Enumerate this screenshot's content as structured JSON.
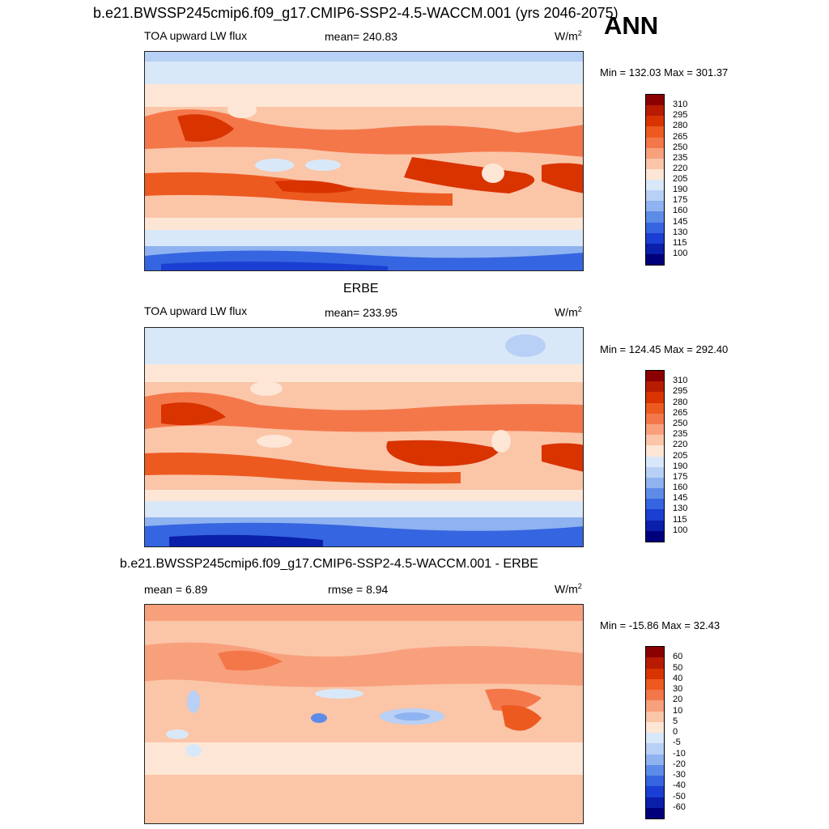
{
  "header": {
    "title": "b.e21.BWSSP245cmip6.f09_g17.CMIP6-SSP2-4.5-WACCM.001 (yrs 2046-2075)",
    "season": "ANN"
  },
  "panels": [
    {
      "title": "",
      "variable": "TOA upward LW flux",
      "stat_left": "mean= 240.83",
      "stat_right": "",
      "units": "W/m",
      "units_sup": "2",
      "minmax": "Min = 132.03 Max = 301.37"
    },
    {
      "title": "ERBE",
      "variable": "TOA upward LW flux",
      "stat_left": "mean= 233.95",
      "stat_right": "",
      "units": "W/m",
      "units_sup": "2",
      "minmax": "Min = 124.45 Max = 292.40"
    },
    {
      "title": "b.e21.BWSSP245cmip6.f09_g17.CMIP6-SSP2-4.5-WACCM.001 - ERBE",
      "variable": "",
      "stat_left": "mean =   6.89",
      "stat_right": "rmse =   8.94",
      "units": "W/m",
      "units_sup": "2",
      "minmax": "Min = -15.86 Max =  32.43"
    }
  ],
  "colorbars": {
    "absolute": {
      "levels": [
        "310",
        "295",
        "280",
        "265",
        "250",
        "235",
        "220",
        "205",
        "190",
        "175",
        "160",
        "145",
        "130",
        "115",
        "100"
      ],
      "colors": [
        "#8b0000",
        "#b71c00",
        "#d93300",
        "#ec5a20",
        "#f4774a",
        "#f8a07c",
        "#fbc5a8",
        "#fde6d6",
        "#d9e8f8",
        "#b8d0f5",
        "#8fb2f0",
        "#5d8ce8",
        "#3565e0",
        "#1a3fd2",
        "#0a1faa",
        "#00007a"
      ]
    },
    "difference": {
      "levels": [
        "60",
        "50",
        "40",
        "30",
        "20",
        "10",
        "5",
        "0",
        "-5",
        "-10",
        "-20",
        "-30",
        "-40",
        "-50",
        "-60"
      ],
      "colors": [
        "#8b0000",
        "#b71c00",
        "#d93300",
        "#ec5a20",
        "#f4774a",
        "#f8a07c",
        "#fbc5a8",
        "#fde6d6",
        "#d9e8f8",
        "#b8d0f5",
        "#8fb2f0",
        "#5d8ce8",
        "#3565e0",
        "#1a3fd2",
        "#0a1faa",
        "#00007a"
      ]
    }
  }
}
